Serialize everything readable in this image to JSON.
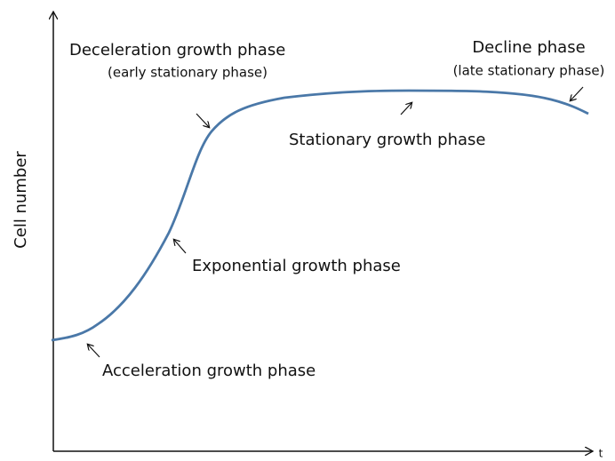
{
  "y_axis": {
    "label": "Cell number"
  },
  "x_axis": {
    "label": "t"
  },
  "phases": [
    {
      "label": "Deceleration growth phase",
      "note": "(early stationary phase)"
    },
    {
      "label": "Decline phase",
      "note": "(late stationary phase)"
    },
    {
      "label": "Stationary growth phase"
    },
    {
      "label": "Exponential growth phase"
    },
    {
      "label": "Acceleration growth phase"
    }
  ]
}
